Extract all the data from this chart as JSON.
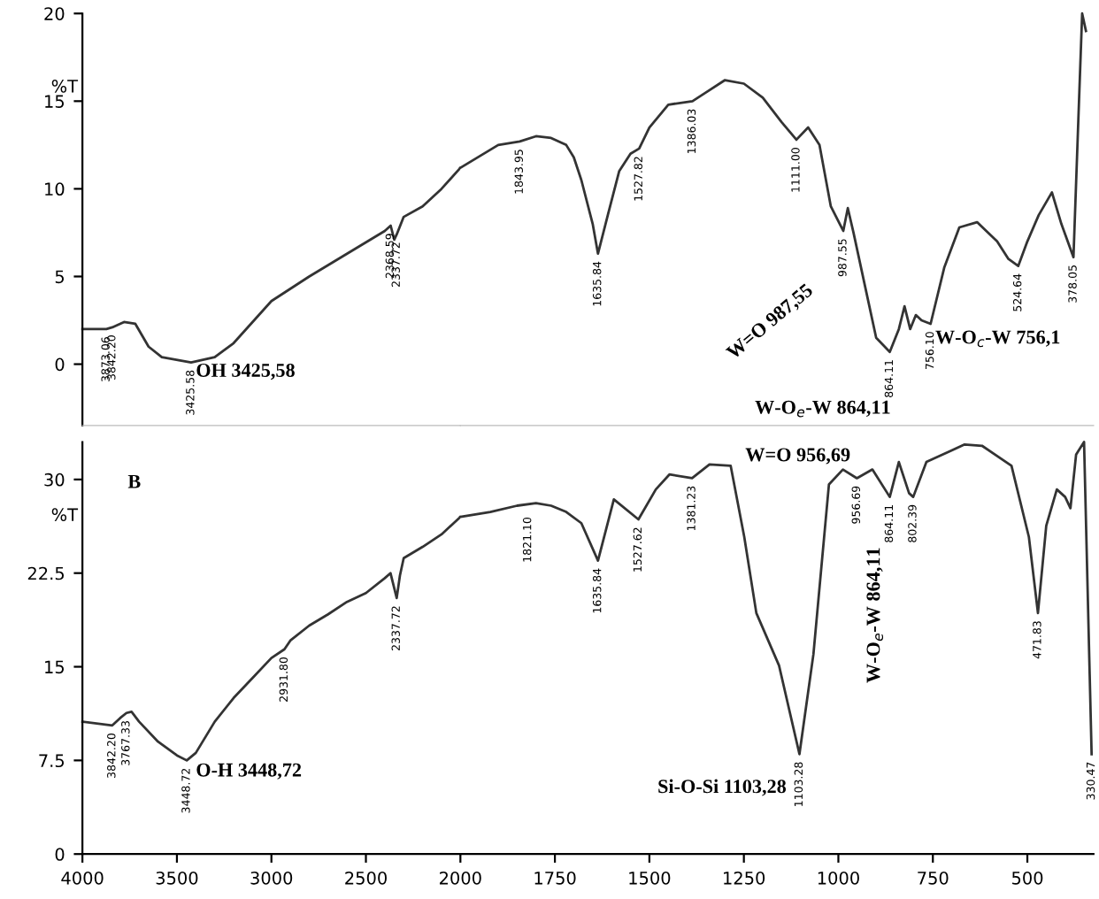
{
  "chart_data": [
    {
      "type": "line",
      "ylabel": "%T",
      "xlim": [
        4000,
        2000
      ],
      "ylim": [
        -3.5,
        20
      ],
      "yticks": [
        0,
        5,
        10,
        15,
        20
      ],
      "tick_labels": "y",
      "marker": "none",
      "line_style": "solid",
      "series": [
        {
          "color": "#333333",
          "x": [
            4000,
            3873,
            3842,
            3780,
            3720,
            3650,
            3580,
            3425,
            3300,
            3200,
            3100,
            3000,
            2800,
            2600,
            2400,
            2369,
            2350,
            2337,
            2300,
            2200,
            2100,
            2000
          ],
          "values": [
            2.0,
            2.0,
            2.1,
            2.4,
            2.3,
            1.0,
            0.4,
            0.1,
            0.4,
            1.2,
            2.4,
            3.6,
            5.0,
            6.3,
            7.6,
            7.9,
            7.1,
            7.4,
            8.4,
            9.0,
            10.0,
            11.2
          ]
        }
      ],
      "annotations": [
        {
          "text": "3873.06",
          "x": 3873,
          "y": 2.0
        },
        {
          "text": "3842.20",
          "x": 3842,
          "y": 2.1
        },
        {
          "text": "3425.58",
          "x": 3425,
          "y": 0.1
        },
        {
          "text": "2368.59",
          "x": 2369,
          "y": 7.9
        },
        {
          "text": "2337.72",
          "x": 2337,
          "y": 7.4
        },
        "OH 3425,58"
      ]
    },
    {
      "type": "line",
      "xlim": [
        2000,
        325
      ],
      "ylim": [
        -3.5,
        20
      ],
      "tick_labels": false,
      "marker": "none",
      "line_style": "solid",
      "series": [
        {
          "color": "#333333",
          "x": [
            2000,
            1900,
            1843,
            1800,
            1760,
            1720,
            1700,
            1680,
            1650,
            1636,
            1610,
            1580,
            1550,
            1527,
            1500,
            1450,
            1386,
            1350,
            1300,
            1250,
            1200,
            1150,
            1111,
            1080,
            1050,
            1020,
            987,
            975,
            960,
            930,
            900,
            864,
            840,
            825,
            810,
            795,
            780,
            756,
            720,
            680,
            633,
            580,
            550,
            524,
            500,
            470,
            435,
            410,
            378,
            365,
            355,
            345
          ],
          "values": [
            11.2,
            12.5,
            12.7,
            13.0,
            12.9,
            12.5,
            11.8,
            10.5,
            8.0,
            6.3,
            8.5,
            11.0,
            12.0,
            12.3,
            13.5,
            14.8,
            15.0,
            15.5,
            16.2,
            16.0,
            15.2,
            13.8,
            12.8,
            13.5,
            12.5,
            9.0,
            7.6,
            8.9,
            7.5,
            4.5,
            1.5,
            0.7,
            2.0,
            3.3,
            2.0,
            2.8,
            2.5,
            2.3,
            5.5,
            7.8,
            8.1,
            7.0,
            6.0,
            5.6,
            7.0,
            8.5,
            9.8,
            8.0,
            6.1,
            14.0,
            20.0,
            19.0
          ]
        }
      ],
      "annotations": [
        {
          "text": "1843.95",
          "x": 1843,
          "y": 12.7
        },
        {
          "text": "1635.84",
          "x": 1636,
          "y": 6.3
        },
        {
          "text": "1527.82",
          "x": 1527,
          "y": 12.3
        },
        {
          "text": "1386.03",
          "x": 1386,
          "y": 15.0
        },
        {
          "text": "1111.00",
          "x": 1111,
          "y": 12.8
        },
        {
          "text": "987.55",
          "x": 987,
          "y": 7.6
        },
        {
          "text": "864.11",
          "x": 864,
          "y": 0.7
        },
        {
          "text": "756.10",
          "x": 756,
          "y": 2.3
        },
        {
          "text": "524.64",
          "x": 524,
          "y": 5.6
        },
        {
          "text": "378.05",
          "x": 378,
          "y": 6.1
        },
        "W=O 987,55",
        "W-O$_{e}$-W 864,11",
        "W-O$_{c}$-W 756,1"
      ]
    },
    {
      "type": "line",
      "ylabel": "%T",
      "xlim": [
        4000,
        2000
      ],
      "ylim": [
        0,
        33
      ],
      "yticks": [
        0,
        7.5,
        15,
        22.5,
        30
      ],
      "xticks": [
        4000,
        3500,
        3000,
        2500
      ],
      "marker": "none",
      "line_style": "solid",
      "series": [
        {
          "color": "#333333",
          "x": [
            4000,
            3842,
            3800,
            3767,
            3740,
            3700,
            3600,
            3500,
            3448,
            3400,
            3300,
            3200,
            3100,
            3000,
            2931,
            2900,
            2800,
            2700,
            2600,
            2500,
            2400,
            2370,
            2337,
            2320,
            2300,
            2200,
            2100,
            2000
          ],
          "values": [
            10.6,
            10.3,
            10.9,
            11.3,
            11.4,
            10.6,
            9.0,
            7.9,
            7.5,
            8.1,
            10.6,
            12.5,
            14.1,
            15.7,
            16.4,
            17.1,
            18.3,
            19.2,
            20.2,
            20.9,
            22.1,
            22.5,
            20.5,
            22.3,
            23.7,
            24.6,
            25.6,
            27.0
          ]
        }
      ],
      "annotations": [
        "B",
        {
          "text": "3842.20",
          "x": 3842,
          "y": 10.3
        },
        {
          "text": "3767.33",
          "x": 3767,
          "y": 11.3
        },
        {
          "text": "3448.72",
          "x": 3448,
          "y": 7.5
        },
        {
          "text": "2931.80",
          "x": 2931,
          "y": 16.4
        },
        {
          "text": "2337.72",
          "x": 2337,
          "y": 20.5
        },
        "O-H 3448,72"
      ]
    },
    {
      "type": "line",
      "xlim": [
        2000,
        325
      ],
      "ylim": [
        0,
        33
      ],
      "xticks": [
        2000,
        1750,
        1500,
        1250,
        1000,
        750,
        500
      ],
      "tick_labels": "x",
      "marker": "none",
      "line_style": "solid",
      "series": [
        {
          "color": "#333333",
          "x": [
            2000,
            1921,
            1850,
            1800,
            1760,
            1720,
            1680,
            1636,
            1594,
            1529,
            1483,
            1447,
            1387,
            1341,
            1285,
            1249,
            1217,
            1157,
            1103,
            1066,
            1025,
            988,
            951,
            910,
            864,
            840,
            813,
            802,
            767,
            666,
            620,
            542,
            496,
            472,
            450,
            422,
            400,
            386,
            371,
            350,
            330
          ],
          "values": [
            27.0,
            27.4,
            27.9,
            28.1,
            27.9,
            27.4,
            26.5,
            23.5,
            28.4,
            26.8,
            29.2,
            30.4,
            30.1,
            31.2,
            31.1,
            25.4,
            19.3,
            15.1,
            8.0,
            16.0,
            29.6,
            30.8,
            30.1,
            30.8,
            28.6,
            31.4,
            28.9,
            28.6,
            31.4,
            32.8,
            32.7,
            31.1,
            25.4,
            19.3,
            26.3,
            29.2,
            28.6,
            27.7,
            32.0,
            33.0,
            8.0
          ]
        }
      ],
      "annotations": [
        {
          "text": "1821.10",
          "x": 1821,
          "y": 27.6
        },
        {
          "text": "1635.84",
          "x": 1636,
          "y": 23.5
        },
        {
          "text": "1527.62",
          "x": 1529,
          "y": 26.8
        },
        {
          "text": "1381.23",
          "x": 1387,
          "y": 30.1
        },
        {
          "text": "1103.28",
          "x": 1103,
          "y": 8.0
        },
        {
          "text": "956.69",
          "x": 951,
          "y": 30.1
        },
        {
          "text": "864.11",
          "x": 864,
          "y": 28.6
        },
        {
          "text": "802.39",
          "x": 802,
          "y": 28.6
        },
        {
          "text": "471.83",
          "x": 472,
          "y": 19.3
        },
        {
          "text": "330.47",
          "x": 330,
          "y": 8.0
        },
        "Si-O-Si 1103,28",
        "W=O 956,69",
        "W-O$_{e}$-W 864,11"
      ]
    }
  ]
}
